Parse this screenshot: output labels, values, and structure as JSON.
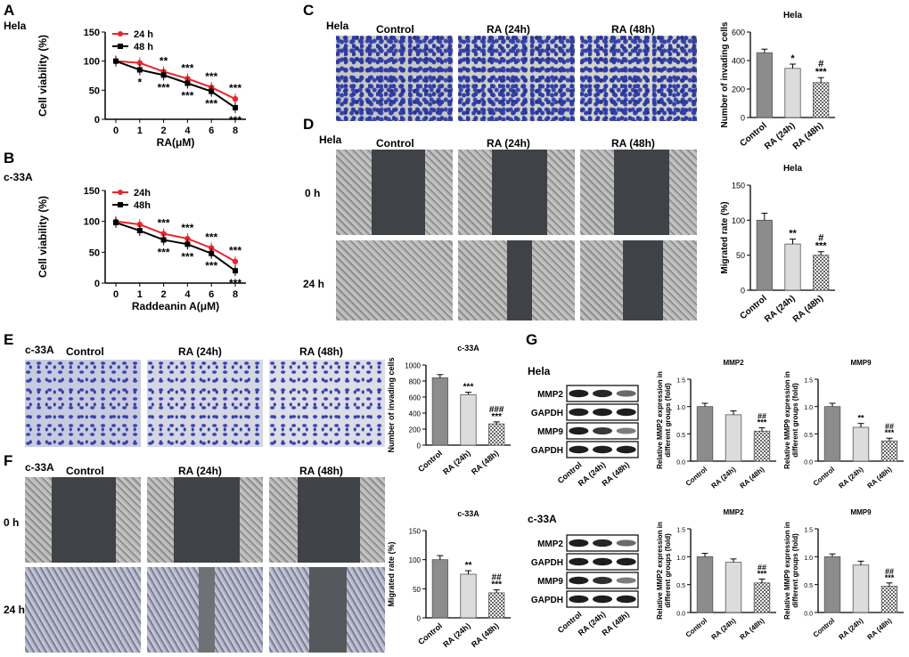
{
  "panels": {
    "A": {
      "letter": "A",
      "cell": "Hela",
      "legend": [
        "24 h",
        "48 h"
      ],
      "ylabel": "Cell viability (%)",
      "xlabel": "RA(μM)"
    },
    "B": {
      "letter": "B",
      "cell": "c-33A",
      "legend": [
        "24h",
        "48h"
      ],
      "ylabel": "Cell viability (%)",
      "xlabel": "Raddeanin A(μM)"
    },
    "C": {
      "letter": "C",
      "cell": "Hela",
      "groups": [
        "Control",
        "RA (24h)",
        "RA (48h)"
      ],
      "chart_title": "Hela",
      "ylabel": "Number of invading cells"
    },
    "D": {
      "letter": "D",
      "cell": "Hela",
      "groups": [
        "Control",
        "RA (24h)",
        "RA (48h)"
      ],
      "times": [
        "0 h",
        "24 h"
      ],
      "chart_title": "Hela",
      "ylabel": "Migrated rate (%)"
    },
    "E": {
      "letter": "E",
      "cell": "c-33A",
      "groups": [
        "Control",
        "RA (24h)",
        "RA (48h)"
      ],
      "chart_title": "c-33A",
      "ylabel": "Number of invading cells"
    },
    "F": {
      "letter": "F",
      "cell": "c-33A",
      "groups": [
        "Control",
        "RA (24h)",
        "RA (48h)"
      ],
      "times": [
        "0 h",
        "24 h"
      ],
      "chart_title": "c-33A",
      "ylabel": "Migrated rate (%)"
    },
    "G": {
      "letter": "G",
      "cells": [
        "Hela",
        "c-33A"
      ],
      "bands": [
        "MMP2",
        "GAPDH",
        "MMP9",
        "GAPDH"
      ],
      "groups": [
        "Control",
        "RA (24h)",
        "RA (48h)"
      ]
    }
  },
  "chart_data": [
    {
      "id": "A",
      "type": "line",
      "title": "",
      "xlabel": "RA(μM)",
      "ylabel": "Cell viability (%)",
      "categories": [
        "0",
        "1",
        "2",
        "4",
        "6",
        "8"
      ],
      "ylim": [
        0,
        150
      ],
      "yticks": [
        0,
        50,
        100,
        150
      ],
      "series": [
        {
          "name": "24 h",
          "color": "#e8262b",
          "values": [
            100,
            97,
            82,
            70,
            55,
            35
          ]
        },
        {
          "name": "48 h",
          "color": "#000000",
          "values": [
            100,
            85,
            76,
            62,
            48,
            20
          ]
        }
      ],
      "annotations": [
        {
          "x": "1",
          "above": "",
          "below": "*"
        },
        {
          "x": "2",
          "above": "**",
          "below": "***"
        },
        {
          "x": "4",
          "above": "***",
          "below": "***"
        },
        {
          "x": "6",
          "above": "***",
          "below": "***"
        },
        {
          "x": "8",
          "above": "***",
          "below": "***"
        }
      ]
    },
    {
      "id": "B",
      "type": "line",
      "title": "",
      "xlabel": "Raddeanin A(μM)",
      "ylabel": "Cell viability (%)",
      "categories": [
        "0",
        "1",
        "2",
        "4",
        "6",
        "8"
      ],
      "ylim": [
        0,
        150
      ],
      "yticks": [
        0,
        50,
        100,
        150
      ],
      "series": [
        {
          "name": "24h",
          "color": "#e8262b",
          "values": [
            100,
            95,
            80,
            72,
            57,
            35
          ]
        },
        {
          "name": "48h",
          "color": "#000000",
          "values": [
            98,
            85,
            70,
            63,
            48,
            20
          ]
        }
      ],
      "annotations": [
        {
          "x": "1",
          "above": "",
          "below": ""
        },
        {
          "x": "2",
          "above": "***",
          "below": "***"
        },
        {
          "x": "4",
          "above": "***",
          "below": "***"
        },
        {
          "x": "6",
          "above": "***",
          "below": "***"
        },
        {
          "x": "8",
          "above": "***",
          "below": "***"
        }
      ]
    },
    {
      "id": "C",
      "type": "bar",
      "title": "Hela",
      "ylabel": "Number of invading cells",
      "categories": [
        "Control",
        "RA (24h)",
        "RA (48h)"
      ],
      "values": [
        455,
        345,
        245
      ],
      "errors": [
        25,
        30,
        35
      ],
      "ylim": [
        0,
        600
      ],
      "yticks": [
        0,
        200,
        400,
        600
      ],
      "labels": [
        "",
        "*",
        "#\n***"
      ]
    },
    {
      "id": "D",
      "type": "bar",
      "title": "Hela",
      "ylabel": "Migrated rate (%)",
      "categories": [
        "Control",
        "RA (24h)",
        "RA (48h)"
      ],
      "values": [
        100,
        66,
        50
      ],
      "errors": [
        10,
        7,
        5
      ],
      "ylim": [
        0,
        150
      ],
      "yticks": [
        0,
        50,
        100,
        150
      ],
      "labels": [
        "",
        "**",
        "#\n***"
      ]
    },
    {
      "id": "E",
      "type": "bar",
      "title": "c-33A",
      "ylabel": "Number of invading cells",
      "categories": [
        "Control",
        "RA (24h)",
        "RA (48h)"
      ],
      "values": [
        840,
        630,
        265
      ],
      "errors": [
        40,
        30,
        25
      ],
      "ylim": [
        0,
        1000
      ],
      "yticks": [
        0,
        200,
        400,
        600,
        800,
        1000
      ],
      "labels": [
        "",
        "***",
        "###\n***"
      ]
    },
    {
      "id": "F",
      "type": "bar",
      "title": "c-33A",
      "ylabel": "Migrated rate (%)",
      "categories": [
        "Control",
        "RA (24h)",
        "RA (48h)"
      ],
      "values": [
        100,
        75,
        43
      ],
      "errors": [
        7,
        6,
        5
      ],
      "ylim": [
        0,
        150
      ],
      "yticks": [
        0,
        50,
        100,
        150
      ],
      "labels": [
        "",
        "**",
        "##\n***"
      ]
    },
    {
      "id": "G-Hela-MMP2",
      "type": "bar",
      "title": "MMP2",
      "ylabel": "Relative MMP2 expression in\ndifferent groups (fold)",
      "categories": [
        "Control",
        "RA (24h)",
        "RA (48h)"
      ],
      "values": [
        1.0,
        0.85,
        0.55
      ],
      "errors": [
        0.06,
        0.07,
        0.06
      ],
      "ylim": [
        0,
        1.5
      ],
      "yticks": [
        0.0,
        0.5,
        1.0,
        1.5
      ],
      "labels": [
        "",
        "",
        "##\n***"
      ]
    },
    {
      "id": "G-Hela-MMP9",
      "type": "bar",
      "title": "MMP9",
      "ylabel": "Relative MMP9 expression in\ndifferent groups (fold)",
      "categories": [
        "Control",
        "RA (24h)",
        "RA (48h)"
      ],
      "values": [
        1.0,
        0.62,
        0.37
      ],
      "errors": [
        0.06,
        0.07,
        0.05
      ],
      "ylim": [
        0,
        1.5
      ],
      "yticks": [
        0.0,
        0.5,
        1.0,
        1.5
      ],
      "labels": [
        "",
        "**",
        "##\n***"
      ]
    },
    {
      "id": "G-c33A-MMP2",
      "type": "bar",
      "title": "MMP2",
      "ylabel": "Relative MMP2 expression in\ndifferent groups (fold)",
      "categories": [
        "Control",
        "RA (24h)",
        "RA (48h)"
      ],
      "values": [
        1.0,
        0.9,
        0.53
      ],
      "errors": [
        0.06,
        0.06,
        0.07
      ],
      "ylim": [
        0,
        1.5
      ],
      "yticks": [
        0.0,
        0.5,
        1.0,
        1.5
      ],
      "labels": [
        "",
        "",
        "##\n***"
      ]
    },
    {
      "id": "G-c33A-MMP9",
      "type": "bar",
      "title": "MMP9",
      "ylabel": "Relative MMP9 expression in\ndifferent groups (fold)",
      "categories": [
        "Control",
        "RA (24h)",
        "RA (48h)"
      ],
      "values": [
        1.0,
        0.85,
        0.47
      ],
      "errors": [
        0.05,
        0.07,
        0.06
      ],
      "ylim": [
        0,
        1.5
      ],
      "yticks": [
        0.0,
        0.5,
        1.0,
        1.5
      ],
      "labels": [
        "",
        "",
        "##\n***"
      ]
    }
  ]
}
